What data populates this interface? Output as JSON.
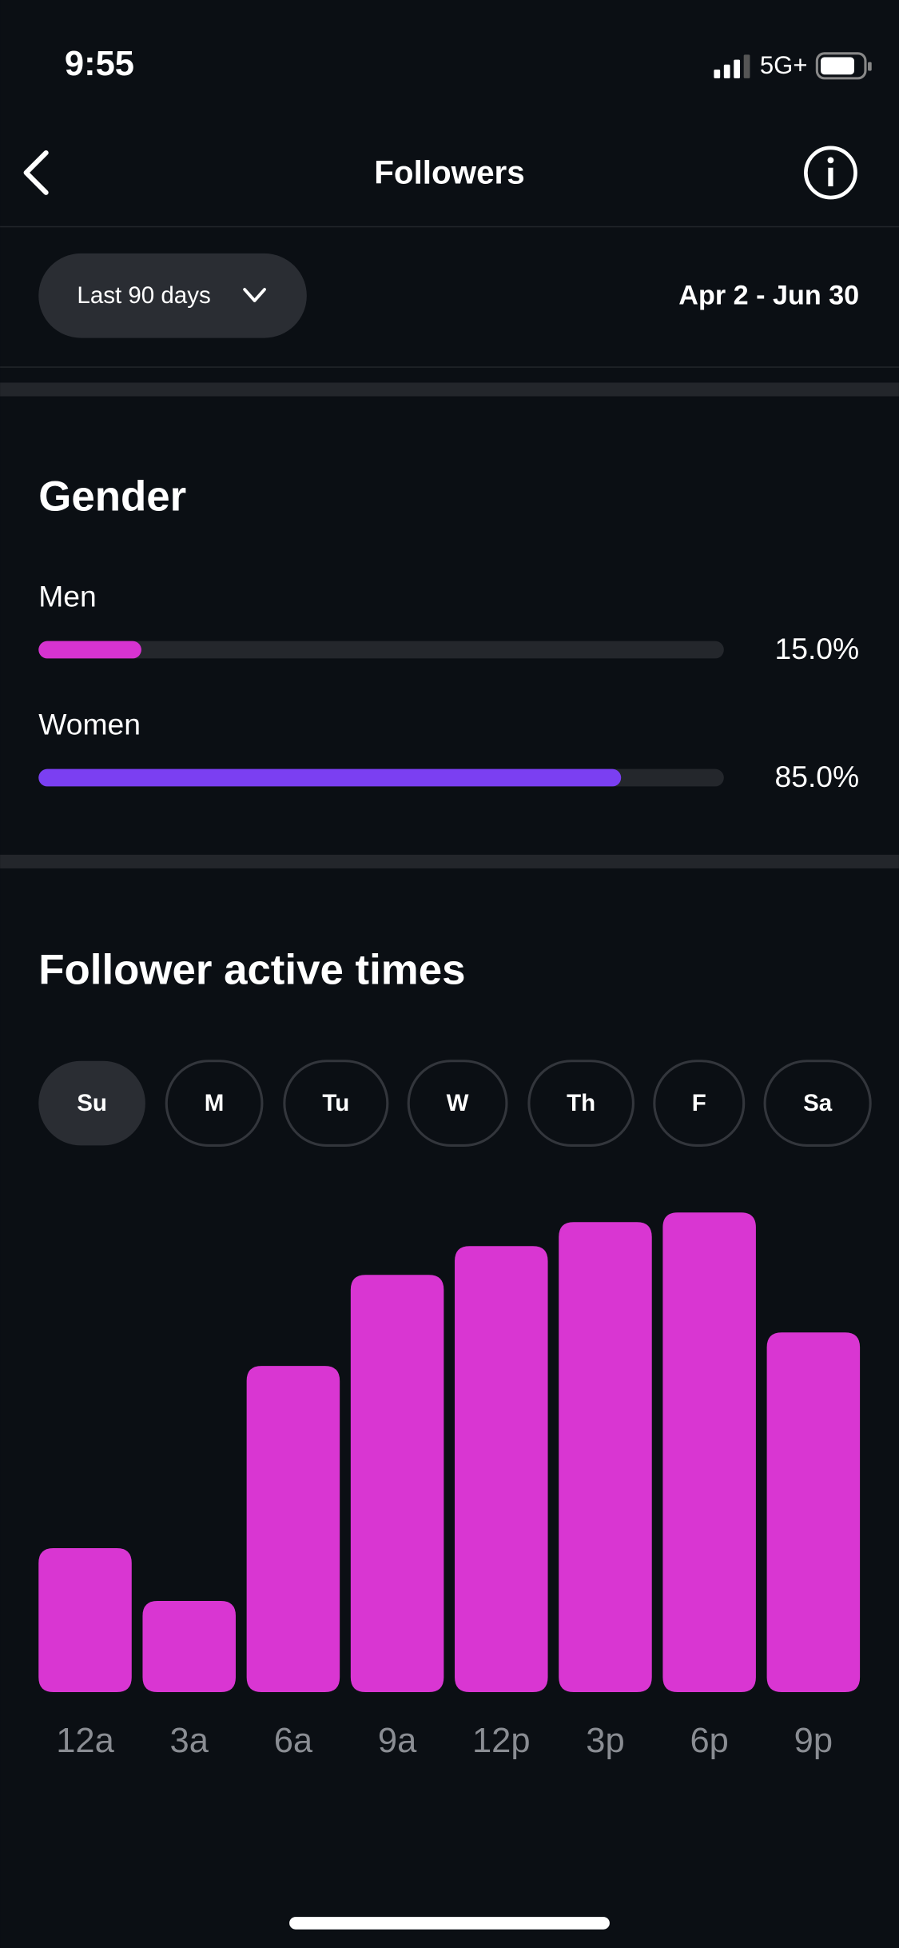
{
  "status_bar": {
    "time": "9:55",
    "network": "5G+"
  },
  "header": {
    "title": "Followers"
  },
  "filter": {
    "range": "Last 90 days",
    "dates": "Apr 2 - Jun 30"
  },
  "chart_data": [
    {
      "type": "hbar",
      "title": "Gender",
      "categories": [
        "Men",
        "Women"
      ],
      "values": [
        15.0,
        85.0
      ],
      "value_labels": [
        "15.0%",
        "85.0%"
      ],
      "colors": [
        "#d633d0",
        "#7b3ff2"
      ],
      "xlim": [
        0,
        100
      ]
    },
    {
      "type": "bar",
      "title": "Follower active times",
      "days": [
        "Su",
        "M",
        "Tu",
        "W",
        "Th",
        "F",
        "Sa"
      ],
      "selected_day": "Su",
      "categories": [
        "12a",
        "3a",
        "6a",
        "9a",
        "12p",
        "3p",
        "6p",
        "9p"
      ],
      "values": [
        30,
        19,
        68,
        87,
        93,
        98,
        100,
        75
      ],
      "color": "#d936d2",
      "ylim": [
        0,
        100
      ]
    }
  ]
}
